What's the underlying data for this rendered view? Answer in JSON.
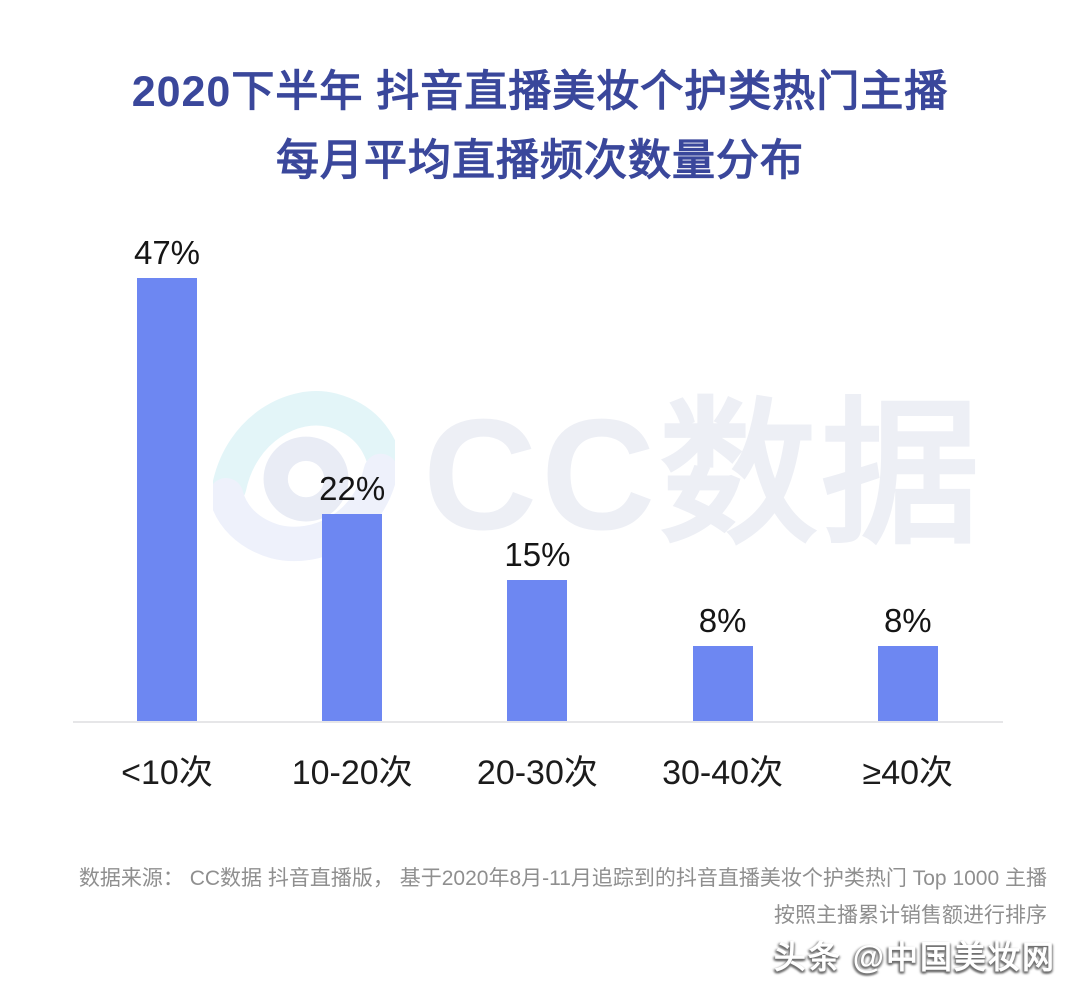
{
  "title": {
    "line1": "2020下半年 抖音直播美妆个护类热门主播",
    "line2": "每月平均直播频次数量分布"
  },
  "watermark": {
    "text": "CC数据",
    "icon": "cc-eye-logo"
  },
  "chart_data": {
    "type": "bar",
    "categories": [
      "<10次",
      "10-20次",
      "20-30次",
      "30-40次",
      "≥40次"
    ],
    "values": [
      47,
      22,
      15,
      8,
      8
    ],
    "value_labels": [
      "47%",
      "22%",
      "15%",
      "8%",
      "8%"
    ],
    "title": "2020下半年 抖音直播美妆个护类热门主播 每月平均直播频次数量分布",
    "xlabel": "",
    "ylabel": "",
    "ylim": [
      0,
      50
    ],
    "grid": false,
    "legend": false,
    "bar_color": "#6d87f2",
    "label_color": "#151515",
    "baseline_color": "#e6e6e8"
  },
  "source": {
    "line1": "数据来源：  CC数据 抖音直播版，  基于2020年8月-11月追踪到的抖音直播美妆个护类热门 Top 1000 主播",
    "line2": "按照主播累计销售额进行排序"
  },
  "footer": {
    "watermark": "头条 @中国美妆网"
  },
  "colors": {
    "title_text": "#3a479b",
    "bar": "#6d87f2",
    "source_text": "#8f8f8f",
    "watermark_text": "#edeff5",
    "eye_top": "#e3f5f8",
    "eye_bottom": "#eef1fb",
    "eye_ring": "#e9ecf5"
  }
}
